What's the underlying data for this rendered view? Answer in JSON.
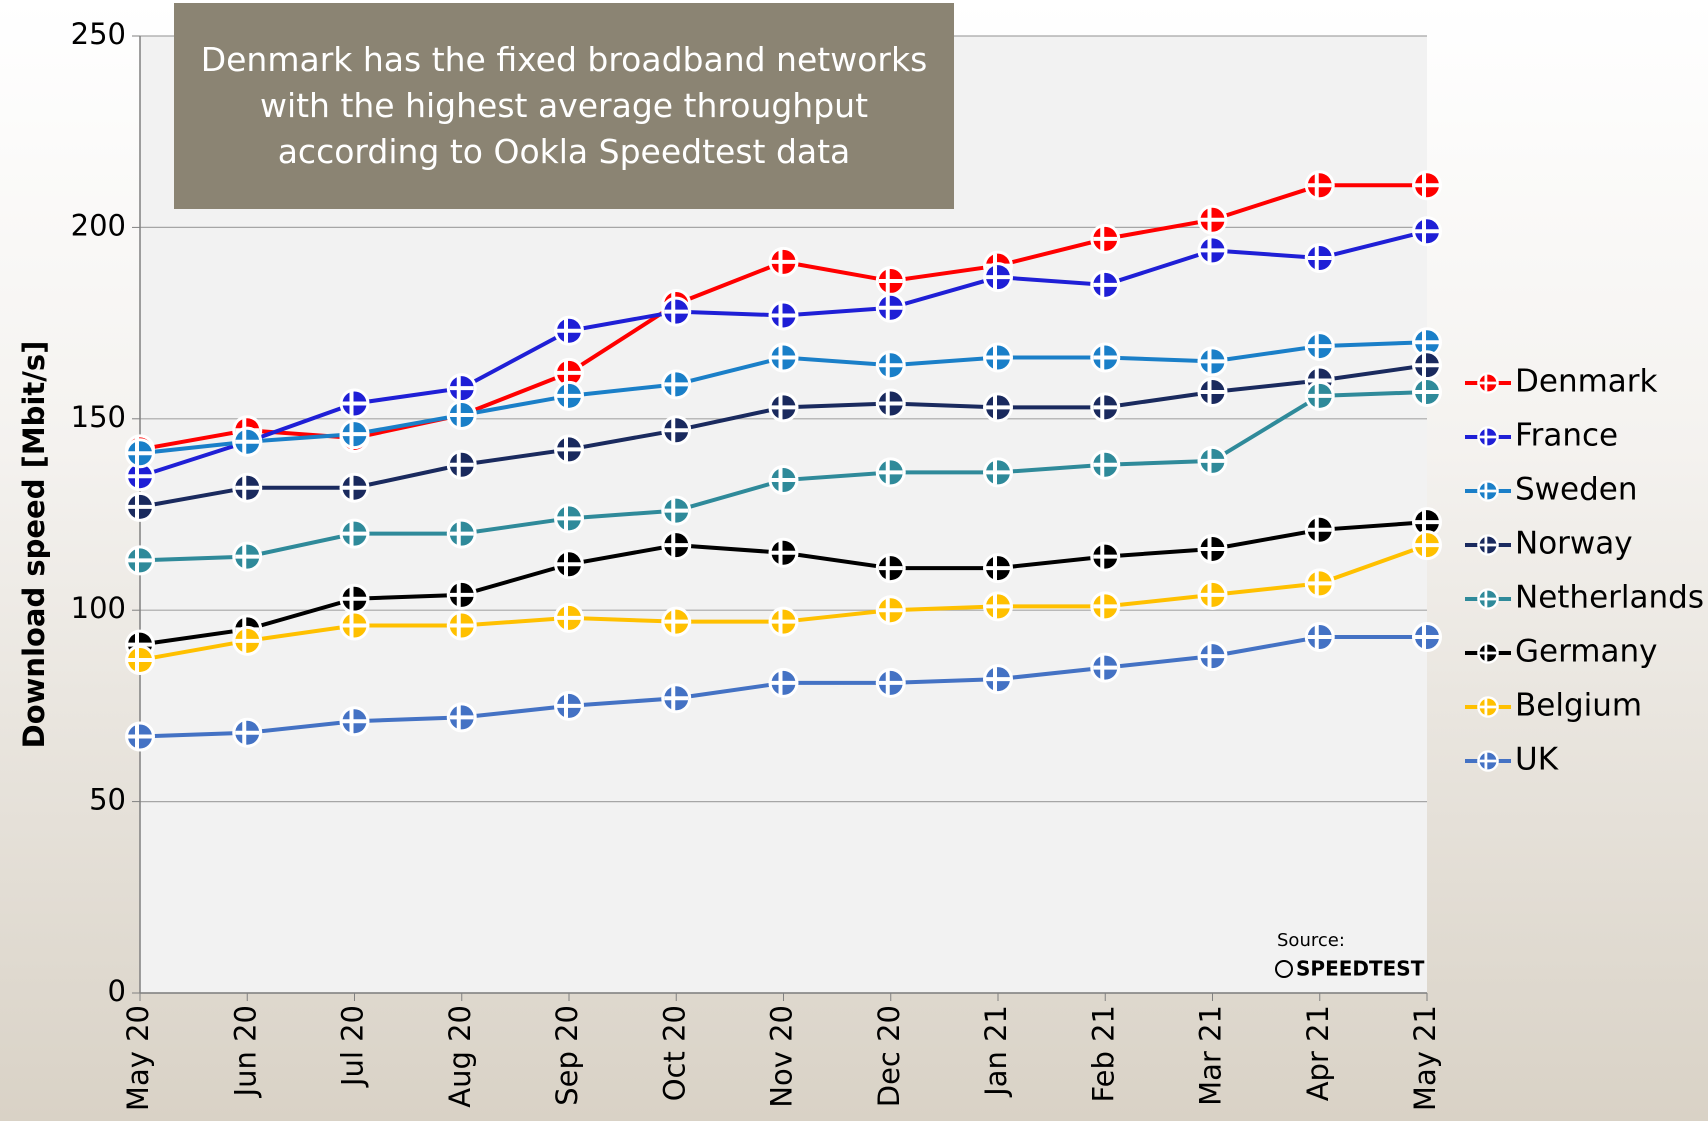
{
  "chart_data": {
    "type": "line",
    "annotation": "Denmark has the fixed broadband networks with the highest average throughput according to Ookla Speedtest data",
    "y_label": "Download speed [Mbit/s]",
    "source_label": "Source:",
    "source": "SPEEDTEST",
    "categories": [
      "May 20",
      "Jun 20",
      "Jul 20",
      "Aug 20",
      "Sep 20",
      "Oct 20",
      "Nov 20",
      "Dec 20",
      "Jan 21",
      "Feb 21",
      "Mar 21",
      "Apr 21",
      "May 21"
    ],
    "series": [
      {
        "name": "Denmark",
        "color": "#ff0000",
        "values": [
          142,
          147,
          145,
          151,
          162,
          180,
          191,
          186,
          190,
          197,
          202,
          211,
          211
        ]
      },
      {
        "name": "France",
        "color": "#1f1fd6",
        "values": [
          135,
          144,
          154,
          158,
          173,
          178,
          177,
          179,
          187,
          185,
          194,
          192,
          199
        ]
      },
      {
        "name": "Sweden",
        "color": "#1a7fc8",
        "values": [
          141,
          144,
          146,
          151,
          156,
          159,
          166,
          164,
          166,
          166,
          165,
          169,
          170
        ]
      },
      {
        "name": "Norway",
        "color": "#1a2a5e",
        "values": [
          127,
          132,
          132,
          138,
          142,
          147,
          153,
          154,
          153,
          153,
          157,
          160,
          164
        ]
      },
      {
        "name": "Netherlands",
        "color": "#2f8a9a",
        "values": [
          113,
          114,
          120,
          120,
          124,
          126,
          134,
          136,
          136,
          138,
          139,
          156,
          157
        ]
      },
      {
        "name": "Germany",
        "color": "#000000",
        "values": [
          91,
          95,
          103,
          104,
          112,
          117,
          115,
          111,
          111,
          114,
          116,
          121,
          123
        ]
      },
      {
        "name": "Belgium",
        "color": "#ffc000",
        "values": [
          87,
          92,
          96,
          96,
          98,
          97,
          97,
          100,
          101,
          101,
          104,
          107,
          117
        ]
      },
      {
        "name": "UK",
        "color": "#4472c4",
        "values": [
          67,
          68,
          71,
          72,
          75,
          77,
          81,
          81,
          82,
          85,
          88,
          93,
          93
        ]
      }
    ],
    "ylim": [
      0,
      250
    ],
    "yticks": [
      0,
      50,
      100,
      150,
      200,
      250
    ],
    "grid": true,
    "legend": "right"
  }
}
